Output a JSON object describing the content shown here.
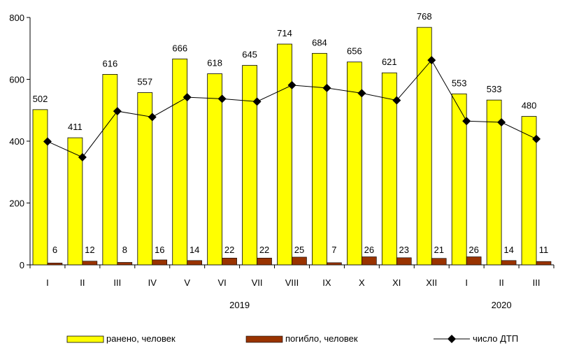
{
  "chart_data": {
    "type": "bar",
    "categories": [
      "I",
      "II",
      "III",
      "IV",
      "V",
      "VI",
      "VII",
      "VIII",
      "IX",
      "X",
      "XI",
      "XII",
      "I",
      "II",
      "III"
    ],
    "year_labels": [
      {
        "label": "2019",
        "from_index": 0,
        "to_index": 11
      },
      {
        "label": "2020",
        "from_index": 12,
        "to_index": 14
      }
    ],
    "series": [
      {
        "name": "ранено, человек",
        "kind": "bar",
        "color": "#FFFF00",
        "values": [
          502,
          411,
          616,
          557,
          666,
          618,
          645,
          714,
          684,
          656,
          621,
          768,
          553,
          533,
          480
        ]
      },
      {
        "name": "погибло, человек",
        "kind": "bar",
        "color": "#993300",
        "values": [
          6,
          12,
          8,
          16,
          14,
          22,
          22,
          25,
          7,
          26,
          23,
          21,
          26,
          14,
          11
        ]
      },
      {
        "name": "число ДТП",
        "kind": "line",
        "color": "#000000",
        "marker": "diamond",
        "values": [
          399,
          348,
          497,
          478,
          542,
          537,
          528,
          581,
          572,
          555,
          532,
          662,
          465,
          461,
          407
        ]
      }
    ],
    "ylim": [
      0,
      800
    ],
    "yticks": [
      0,
      200,
      400,
      600,
      800
    ],
    "grid": false,
    "legend_position": "bottom"
  }
}
